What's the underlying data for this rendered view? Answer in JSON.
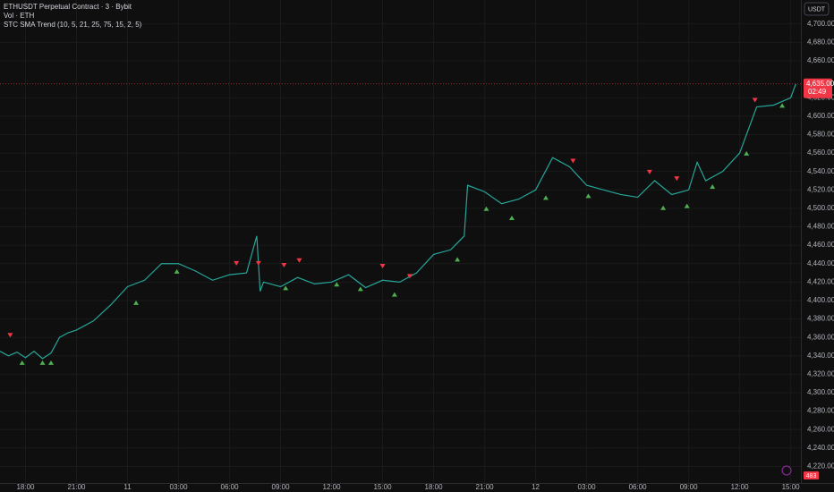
{
  "chart_data": {
    "type": "line",
    "title": "ETHUSDT Perpetual Contract · 3 · Bybit",
    "subtitle": "Vol · ETH",
    "indicator": "STC SMA Trend (10, 5, 21, 25, 75, 15, 2, 5)",
    "currency": "USDT",
    "last_price": {
      "value": 4635,
      "label": "4,635.00"
    },
    "countdown": "02:49",
    "volume_badge": 483,
    "color": "#26a69a",
    "x": [
      -1.5,
      -1,
      -0.5,
      0,
      0.5,
      1,
      1.5,
      2,
      2.5,
      3,
      4,
      5,
      6,
      7,
      8,
      9,
      10,
      11,
      12,
      13,
      13.6,
      13.8,
      14,
      15,
      16,
      17,
      18,
      19,
      20,
      21,
      22,
      23,
      24,
      25,
      25.8,
      26,
      27,
      28,
      29,
      30,
      31,
      32,
      33,
      34,
      35,
      36,
      37,
      38,
      39,
      39.5,
      40,
      41,
      42,
      43,
      44,
      45,
      45.3
    ],
    "values": [
      4345,
      4340,
      4344,
      4338,
      4345,
      4337,
      4343,
      4360,
      4365,
      4368,
      4378,
      4395,
      4415,
      4422,
      4440,
      4440,
      4432,
      4422,
      4428,
      4430,
      4470,
      4410,
      4420,
      4415,
      4425,
      4418,
      4420,
      4428,
      4414,
      4422,
      4420,
      4430,
      4450,
      4455,
      4470,
      4525,
      4518,
      4505,
      4510,
      4520,
      4555,
      4545,
      4525,
      4520,
      4515,
      4512,
      4530,
      4515,
      4520,
      4550,
      4530,
      4540,
      4560,
      4610,
      4612,
      4620,
      4635
    ],
    "buy_signals": {
      "color": "#4caf50",
      "x": [
        -0.2,
        1.0,
        1.5,
        6.5,
        8.9,
        15.3,
        18.3,
        19.7,
        21.7,
        25.4,
        27.1,
        28.6,
        30.6,
        33.1,
        37.5,
        38.9,
        40.4,
        42.4,
        44.5
      ],
      "values": [
        4338,
        4338,
        4338,
        4403,
        4437,
        4419,
        4423,
        4418,
        4412,
        4450,
        4505,
        4495,
        4517,
        4519,
        4506,
        4508,
        4529,
        4565,
        4617
      ]
    },
    "sell_signals": {
      "color": "#f23645",
      "x": [
        -0.9,
        12.4,
        13.7,
        15.2,
        16.1,
        21.0,
        22.6,
        32.2,
        36.7,
        38.3,
        42.9
      ],
      "values": [
        4357,
        4435,
        4435,
        4433,
        4438,
        4432,
        4421,
        4546,
        4534,
        4527,
        4612
      ]
    },
    "xlim": [
      -1.5,
      45.6
    ],
    "xticks": [
      {
        "value": 0,
        "label": "18:00"
      },
      {
        "value": 3,
        "label": "21:00"
      },
      {
        "value": 6,
        "label": "11"
      },
      {
        "value": 9,
        "label": "03:00"
      },
      {
        "value": 12,
        "label": "06:00"
      },
      {
        "value": 15,
        "label": "09:00"
      },
      {
        "value": 18,
        "label": "12:00"
      },
      {
        "value": 21,
        "label": "15:00"
      },
      {
        "value": 24,
        "label": "18:00"
      },
      {
        "value": 27,
        "label": "21:00"
      },
      {
        "value": 30,
        "label": "12"
      },
      {
        "value": 33,
        "label": "03:00"
      },
      {
        "value": 36,
        "label": "06:00"
      },
      {
        "value": 39,
        "label": "09:00"
      },
      {
        "value": 42,
        "label": "12:00"
      },
      {
        "value": 45,
        "label": "15:00"
      }
    ],
    "ylim": [
      4202,
      4726
    ],
    "yticks": [
      {
        "value": 4220,
        "label": "4,220.00"
      },
      {
        "value": 4240,
        "label": "4,240.00"
      },
      {
        "value": 4260,
        "label": "4,260.00"
      },
      {
        "value": 4280,
        "label": "4,280.00"
      },
      {
        "value": 4300,
        "label": "4,300.00"
      },
      {
        "value": 4320,
        "label": "4,320.00"
      },
      {
        "value": 4340,
        "label": "4,340.00"
      },
      {
        "value": 4360,
        "label": "4,360.00"
      },
      {
        "value": 4380,
        "label": "4,380.00"
      },
      {
        "value": 4400,
        "label": "4,400.00"
      },
      {
        "value": 4420,
        "label": "4,420.00"
      },
      {
        "value": 4440,
        "label": "4,440.00"
      },
      {
        "value": 4460,
        "label": "4,460.00"
      },
      {
        "value": 4480,
        "label": "4,480.00"
      },
      {
        "value": 4500,
        "label": "4,500.00"
      },
      {
        "value": 4520,
        "label": "4,520.00"
      },
      {
        "value": 4540,
        "label": "4,540.00"
      },
      {
        "value": 4560,
        "label": "4,560.00"
      },
      {
        "value": 4580,
        "label": "4,580.00"
      },
      {
        "value": 4600,
        "label": "4,600.00"
      },
      {
        "value": 4620,
        "label": "4,620.00"
      },
      {
        "value": 4660,
        "label": "4,660.00"
      },
      {
        "value": 4680,
        "label": "4,680.00"
      },
      {
        "value": 4700,
        "label": "4,700.00"
      }
    ],
    "grid": true
  }
}
